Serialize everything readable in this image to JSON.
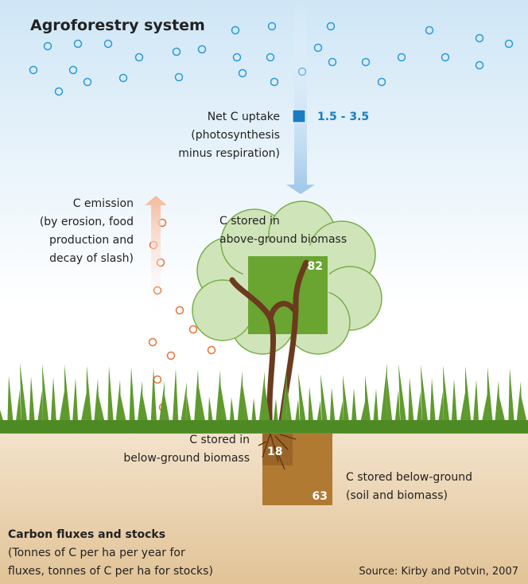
{
  "title": "Agroforestry system",
  "uptake": {
    "label": [
      "Net C uptake",
      "(photosynthesis",
      "minus respiration)"
    ],
    "value": "1.5 - 3.5"
  },
  "emission": {
    "label": [
      "C emission",
      "(by erosion, food",
      "production and",
      "decay of slash)"
    ]
  },
  "above_ground": {
    "label": [
      "C stored in",
      "above-ground biomass"
    ],
    "value": "82"
  },
  "below_ground_biomass": {
    "label": [
      "C stored in",
      "below-ground biomass"
    ],
    "value": "18"
  },
  "below_ground_total": {
    "label": [
      "C stored below-ground",
      "(soil and biomass)"
    ],
    "value": "63"
  },
  "footer": {
    "title": "Carbon fluxes and stocks",
    "note": [
      "(Tonnes of C per ha per year for",
      "fluxes, tonnes of C per ha for stocks)"
    ],
    "source": "Source: Kirby and Potvin, 2007"
  }
}
